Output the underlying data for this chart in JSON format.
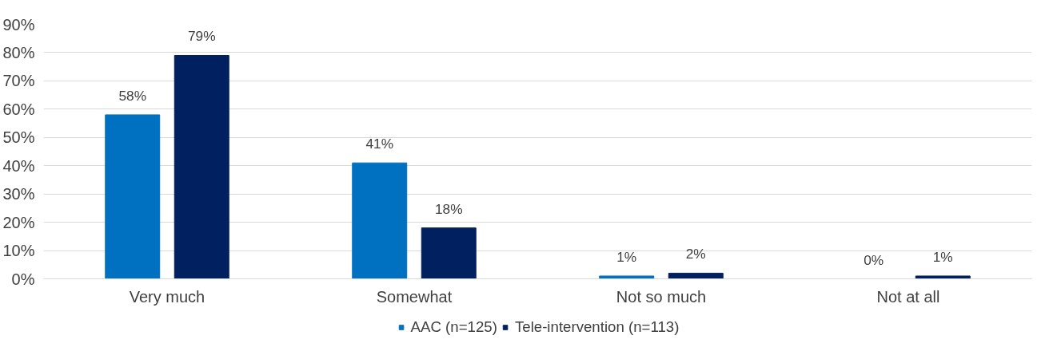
{
  "chart_data": {
    "type": "bar",
    "categories": [
      "Very much",
      "Somewhat",
      "Not so much",
      "Not at all"
    ],
    "series": [
      {
        "name": "AAC (n=125)",
        "color": "#0070c0",
        "values": [
          58,
          41,
          1,
          0
        ],
        "value_labels": [
          "58%",
          "41%",
          "1%",
          "0%"
        ]
      },
      {
        "name": "Tele-intervention (n=113)",
        "color": "#002060",
        "values": [
          79,
          18,
          2,
          1
        ],
        "value_labels": [
          "79%",
          "18%",
          "2%",
          "1%"
        ]
      }
    ],
    "ylim": [
      0,
      90
    ],
    "yticks": [
      {
        "value": 0,
        "label": "0%"
      },
      {
        "value": 10,
        "label": "10%"
      },
      {
        "value": 20,
        "label": "20%"
      },
      {
        "value": 30,
        "label": "30%"
      },
      {
        "value": 40,
        "label": "40%"
      },
      {
        "value": 50,
        "label": "50%"
      },
      {
        "value": 60,
        "label": "60%"
      },
      {
        "value": 70,
        "label": "70%"
      },
      {
        "value": 80,
        "label": "80%"
      },
      {
        "value": 90,
        "label": "90%"
      }
    ],
    "grid": "y",
    "legend": "bottom"
  }
}
